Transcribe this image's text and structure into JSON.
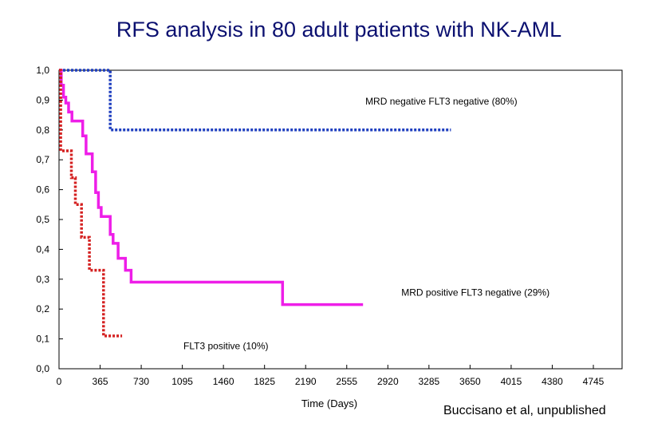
{
  "title": "RFS analysis in 80 adult patients with NK-AML",
  "credit": "Buccisano et al, unpublished",
  "chart_data": {
    "type": "line",
    "title": "RFS analysis in 80 adult patients with NK-AML",
    "xlabel": "Time (Days)",
    "ylabel": "",
    "xlim": [
      0,
      5000
    ],
    "ylim": [
      0,
      1
    ],
    "x_ticks": [
      0,
      365,
      730,
      1095,
      1460,
      1825,
      2190,
      2555,
      2920,
      3285,
      3650,
      4015,
      4380,
      4745
    ],
    "x_tick_labels": [
      "0",
      "365",
      "730",
      "1095",
      "1460",
      "1825",
      "2190",
      "2555",
      "2920",
      "3285",
      "3650",
      "4015",
      "4380",
      "4745"
    ],
    "y_ticks": [
      0,
      0.1,
      0.2,
      0.3,
      0.4,
      0.5,
      0.6,
      0.7,
      0.8,
      0.9,
      1.0
    ],
    "y_tick_labels": [
      "0,0",
      "0,1",
      "0,2",
      "0,3",
      "0,4",
      "0,5",
      "0,6",
      "0,7",
      "0,8",
      "0,9",
      "1,0"
    ],
    "grid": false,
    "series": [
      {
        "name": "MRD negative FLT3 negative (80%)",
        "color": "#1f3fbf",
        "style": "dotted",
        "step": true,
        "points": [
          [
            0,
            1.0
          ],
          [
            455,
            1.0
          ],
          [
            455,
            0.8
          ],
          [
            3480,
            0.8
          ]
        ]
      },
      {
        "name": "MRD positive FLT3 negative (29%)",
        "color": "#ee1ee8",
        "style": "solid",
        "step": true,
        "points": [
          [
            0,
            1.0
          ],
          [
            20,
            1.0
          ],
          [
            20,
            0.95
          ],
          [
            40,
            0.95
          ],
          [
            40,
            0.91
          ],
          [
            60,
            0.91
          ],
          [
            60,
            0.89
          ],
          [
            85,
            0.89
          ],
          [
            85,
            0.86
          ],
          [
            115,
            0.86
          ],
          [
            115,
            0.83
          ],
          [
            210,
            0.83
          ],
          [
            210,
            0.78
          ],
          [
            240,
            0.78
          ],
          [
            240,
            0.72
          ],
          [
            295,
            0.72
          ],
          [
            295,
            0.66
          ],
          [
            325,
            0.66
          ],
          [
            325,
            0.59
          ],
          [
            350,
            0.59
          ],
          [
            350,
            0.54
          ],
          [
            375,
            0.54
          ],
          [
            375,
            0.51
          ],
          [
            455,
            0.51
          ],
          [
            455,
            0.45
          ],
          [
            480,
            0.45
          ],
          [
            480,
            0.42
          ],
          [
            525,
            0.42
          ],
          [
            525,
            0.37
          ],
          [
            590,
            0.37
          ],
          [
            590,
            0.33
          ],
          [
            640,
            0.33
          ],
          [
            640,
            0.29
          ],
          [
            1985,
            0.29
          ],
          [
            1985,
            0.215
          ],
          [
            2700,
            0.215
          ]
        ]
      },
      {
        "name": "FLT3 positive (10%)",
        "color": "#d42020",
        "style": "dotted",
        "step": true,
        "points": [
          [
            0,
            1.0
          ],
          [
            15,
            1.0
          ],
          [
            15,
            0.73
          ],
          [
            110,
            0.73
          ],
          [
            110,
            0.64
          ],
          [
            145,
            0.64
          ],
          [
            145,
            0.55
          ],
          [
            200,
            0.55
          ],
          [
            200,
            0.44
          ],
          [
            270,
            0.44
          ],
          [
            270,
            0.33
          ],
          [
            395,
            0.33
          ],
          [
            395,
            0.11
          ],
          [
            560,
            0.11
          ]
        ]
      }
    ],
    "annotations": [
      {
        "text": "MRD negative FLT3 negative (80%)",
        "x": 2720,
        "y": 0.885
      },
      {
        "text": "MRD positive FLT3 negative (29%)",
        "x": 3040,
        "y": 0.245
      },
      {
        "text": "FLT3 positive (10%)",
        "x": 1105,
        "y": 0.065
      }
    ]
  }
}
